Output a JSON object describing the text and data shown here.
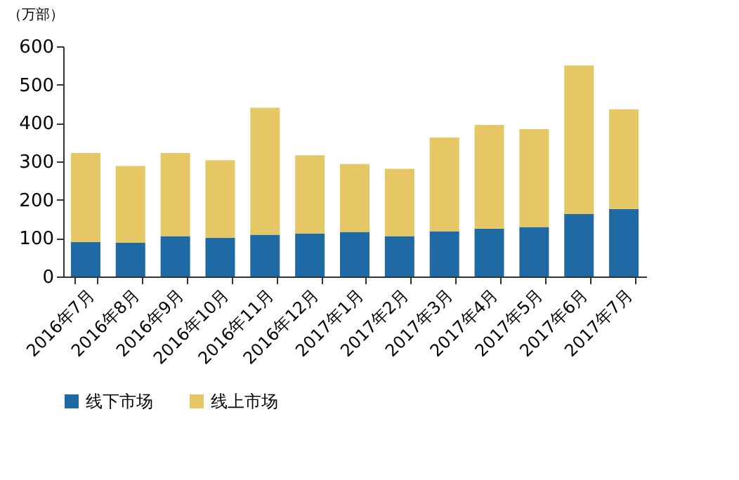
{
  "chart_data": {
    "type": "bar",
    "stacked": true,
    "ylabel": "（万部）",
    "categories": [
      "2016年7月",
      "2016年8月",
      "2016年9月",
      "2016年10月",
      "2016年11月",
      "2016年12月",
      "2017年1月",
      "2017年2月",
      "2017年3月",
      "2017年4月",
      "2017年5月",
      "2017年6月",
      "2017年7月"
    ],
    "series": [
      {
        "name": "线下市场",
        "color": "#1f6aa5",
        "values": [
          90,
          88,
          105,
          101,
          109,
          112,
          116,
          105,
          118,
          125,
          129,
          163,
          176
        ]
      },
      {
        "name": "线上市场",
        "color": "#e5c865",
        "values": [
          232,
          200,
          217,
          202,
          331,
          204,
          177,
          176,
          244,
          270,
          255,
          387,
          260
        ]
      }
    ],
    "ylim": [
      0,
      600
    ],
    "yticks": [
      0,
      100,
      200,
      300,
      400,
      500,
      600
    ],
    "grid": false,
    "legend": "bottom"
  }
}
